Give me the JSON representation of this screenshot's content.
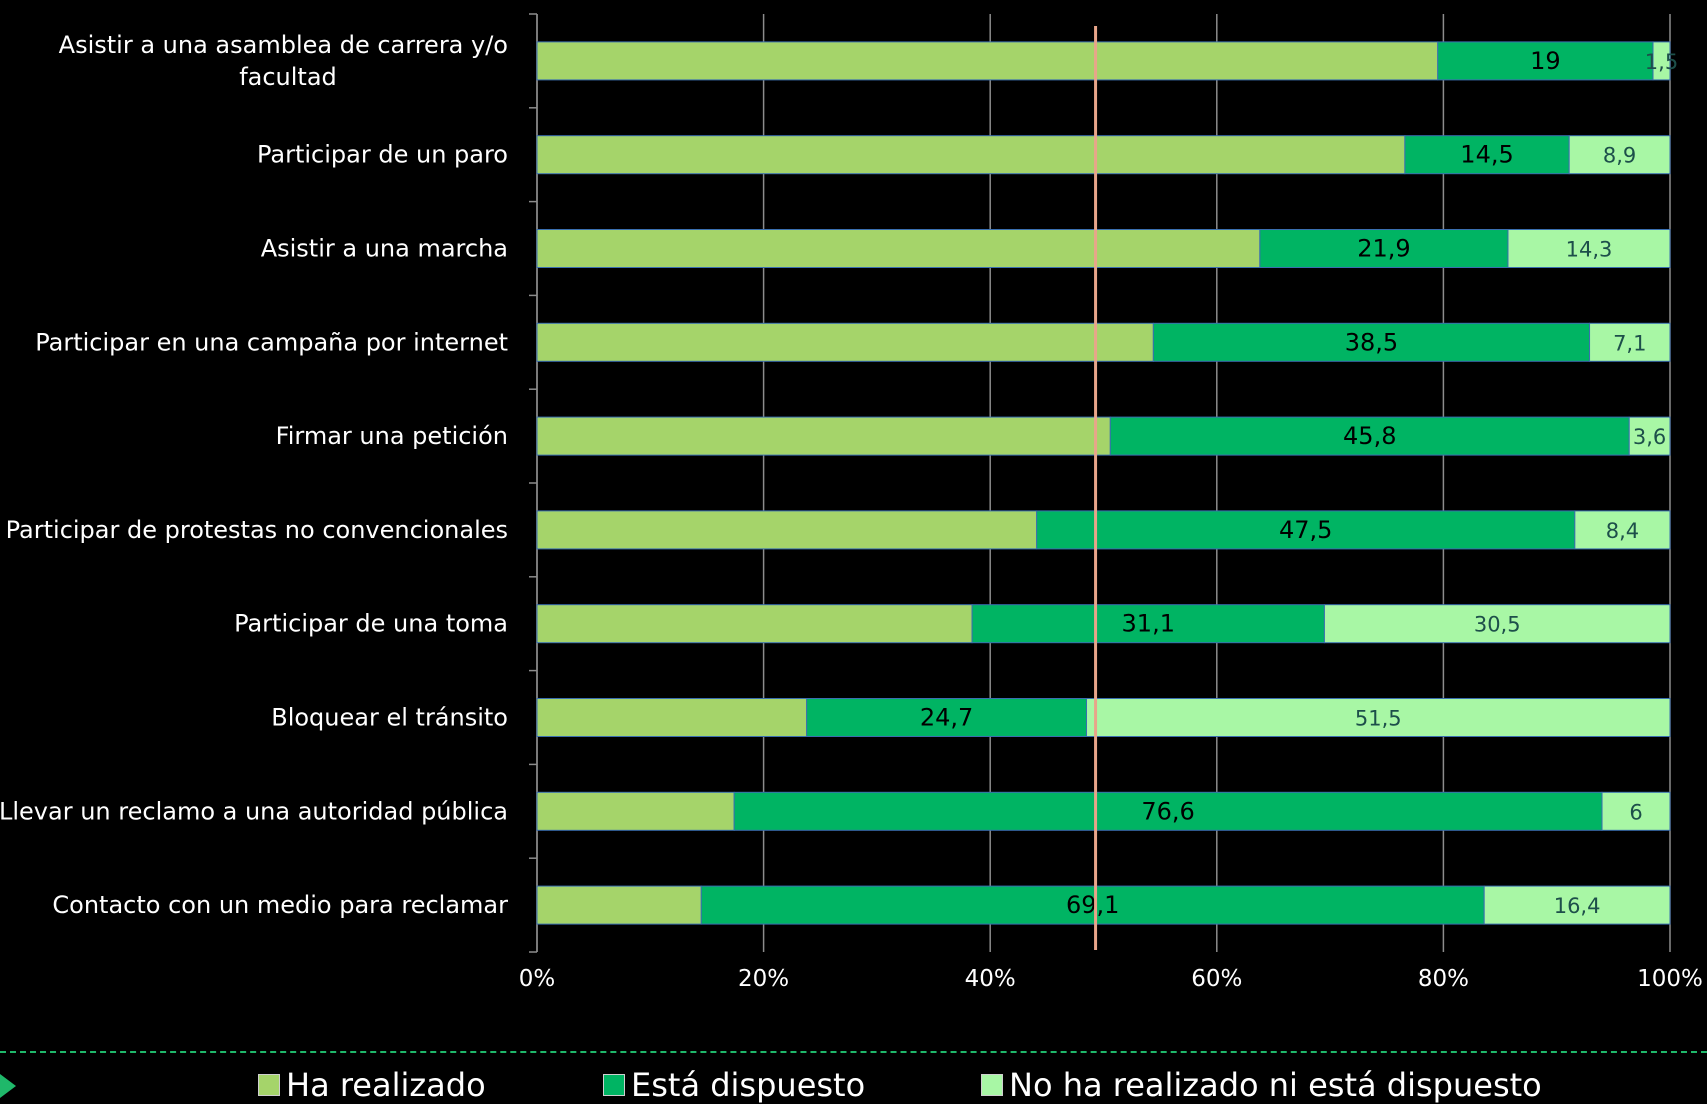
{
  "chart_data": {
    "type": "bar",
    "orientation": "horizontal",
    "stacked": "100%",
    "categories": [
      "Asistir a una asamblea de carrera y/o facultad",
      "Participar de un paro",
      "Asistir a una marcha",
      "Participar en una campaña por internet",
      "Firmar una petición",
      "Participar de protestas no convencionales",
      "Participar de una toma",
      "Bloquear el tránsito",
      "Llevar un reclamo a una autoridad pública",
      "Contacto con un medio para reclamar"
    ],
    "series": [
      {
        "name": "Ha realizado",
        "values": [
          79.5,
          76.6,
          63.8,
          54.4,
          50.6,
          44.1,
          38.4,
          23.8,
          17.4,
          14.5
        ],
        "color": "#a5d46a"
      },
      {
        "name": "Está dispuesto",
        "values": [
          19,
          14.5,
          21.9,
          38.5,
          45.8,
          47.5,
          31.1,
          24.7,
          76.6,
          69.1
        ],
        "color": "#00b463"
      },
      {
        "name": "No ha realizado ni está dispuesto",
        "values": [
          1.5,
          8.9,
          14.3,
          7.1,
          3.6,
          8.4,
          30.5,
          51.5,
          6,
          16.4
        ],
        "color": "#a8f7a5"
      }
    ],
    "data_labels": [
      [
        "19",
        "1,5"
      ],
      [
        "14,5",
        "8,9"
      ],
      [
        "21,9",
        "14,3"
      ],
      [
        "38,5",
        "7,1"
      ],
      [
        "45,8",
        "3,6"
      ],
      [
        "47,5",
        "8,4"
      ],
      [
        "31,1",
        "30,5"
      ],
      [
        "24,7",
        "51,5"
      ],
      [
        "76,6",
        "6"
      ],
      [
        "69,1",
        "16,4"
      ]
    ],
    "x_ticks": [
      "0%",
      "20%",
      "40%",
      "60%",
      "80%",
      "100%"
    ],
    "xlim": [
      0,
      100
    ],
    "reference_line": {
      "value": 49.3,
      "color": "#e8a58a"
    },
    "grid": true,
    "legend_position": "bottom",
    "colors": {
      "background": "#000000",
      "grid": "#8c8c8c",
      "text": "#ffffff",
      "accent": "#1fb86a"
    }
  }
}
